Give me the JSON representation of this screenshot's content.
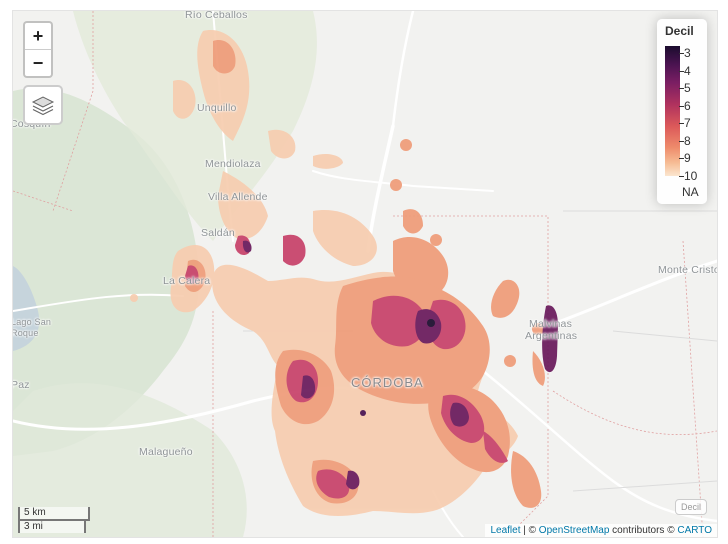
{
  "controls": {
    "zoom_in": "+",
    "zoom_out": "−"
  },
  "legend": {
    "title": "Decil",
    "labels": [
      "3",
      "4",
      "5",
      "6",
      "7",
      "8",
      "9",
      "10"
    ],
    "na": "NA"
  },
  "places": {
    "rio_ceballos": "Río Ceballos",
    "unquillo": "Unquillo",
    "mendiolaza": "Mendiolaza",
    "villa_allende": "Villa Allende",
    "saldan": "Saldán",
    "la_calera": "La Calera",
    "monte_cristo": "Monte Cristo",
    "malvinas_1": "Malvinas",
    "malvinas_2": "Argentinas",
    "cordoba": "CÓRDOBA",
    "malagueno": "Malagueño",
    "cosquin": "Cosquín",
    "san_roque_1": "Lago San",
    "san_roque_2": "Roque",
    "paz": "Paz"
  },
  "scale": {
    "km": "5 km",
    "mi": "3 mi"
  },
  "attribution": {
    "leaflet": "Leaflet",
    "sep1": " | © ",
    "osm": "OpenStreetMap",
    "mid": " contributors © ",
    "carto": "CARTO"
  },
  "group_control": "Decil",
  "colors": {
    "decile_3": "#1b0c2e",
    "decile_4": "#4a1350",
    "decile_5": "#7a1e63",
    "decile_6": "#b0325e",
    "decile_7": "#dc5a5a",
    "decile_8": "#ee8b6b",
    "decile_9": "#f6bd95",
    "decile_10": "#fbe6cf",
    "background": "#f2f2f0",
    "green_area": "#dbe6d6",
    "water": "#c6d4dc"
  }
}
